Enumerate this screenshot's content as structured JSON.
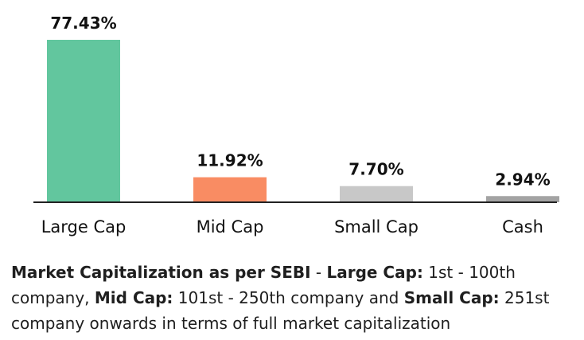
{
  "chart_data": {
    "type": "bar",
    "categories": [
      "Large Cap",
      "Mid Cap",
      "Small Cap",
      "Cash"
    ],
    "values": [
      77.43,
      11.92,
      7.7,
      2.94
    ],
    "value_labels": [
      "77.43%",
      "11.92%",
      "7.70%",
      "2.94%"
    ],
    "bar_colors": [
      "#62c69e",
      "#f98c63",
      "#c8c8c8",
      "#a3a3a3"
    ],
    "title": "",
    "xlabel": "",
    "ylabel": "",
    "ylim": [
      0,
      77.43
    ],
    "grid": false,
    "legend": "none"
  },
  "footnote": {
    "part1_bold": "Market Capitalization as per SEBI",
    "part2": " - ",
    "part3_bold": "Large Cap:",
    "part4": " 1st - 100th company, ",
    "part5_bold": "Mid Cap:",
    "part6": " 101st - 250th company and ",
    "part7_bold": "Small Cap:",
    "part8": " 251st company onwards in terms of full market capitalization"
  }
}
